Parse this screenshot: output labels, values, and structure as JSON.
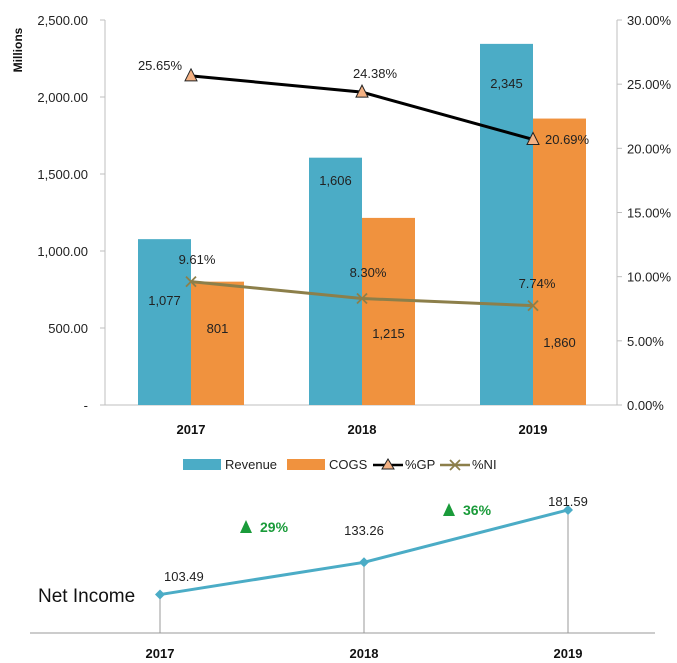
{
  "chart_data": [
    {
      "type": "bar",
      "categories": [
        "2017",
        "2018",
        "2019"
      ],
      "ylabel": "Millions",
      "ylim": [
        0,
        2500
      ],
      "y_ticks": [
        "-",
        "500.00",
        "1,000.00",
        "1,500.00",
        "2,000.00",
        "2,500.00"
      ],
      "y2lim": [
        0,
        30
      ],
      "y2_ticks": [
        "0.00%",
        "5.00%",
        "10.00%",
        "15.00%",
        "20.00%",
        "25.00%",
        "30.00%"
      ],
      "grid": false,
      "legend_position": "bottom",
      "series": [
        {
          "name": "Revenue",
          "kind": "bar",
          "color": "#4bacc6",
          "axis": "left",
          "values": [
            1077,
            1606,
            2345
          ],
          "labels": [
            "1,077",
            "1,606",
            "2,345"
          ]
        },
        {
          "name": "COGS",
          "kind": "bar",
          "color": "#f0923e",
          "axis": "left",
          "values": [
            801,
            1215,
            1860
          ],
          "labels": [
            "801",
            "1,215",
            "1,860"
          ]
        },
        {
          "name": "%GP",
          "kind": "line",
          "color": "#000000",
          "marker": "triangle",
          "marker_color": "#f4b183",
          "axis": "right",
          "values": [
            25.65,
            24.38,
            20.69
          ],
          "labels": [
            "25.65%",
            "24.38%",
            "20.69%"
          ]
        },
        {
          "name": "%NI",
          "kind": "line",
          "color": "#8c7f4a",
          "marker": "x",
          "axis": "right",
          "values": [
            9.61,
            8.3,
            7.74
          ],
          "labels": [
            "9.61%",
            "8.30%",
            "7.74%"
          ]
        }
      ]
    },
    {
      "type": "line",
      "categories": [
        "2017",
        "2018",
        "2019"
      ],
      "label": "Net Income",
      "series": [
        {
          "name": "Net Income",
          "color": "#4bacc6",
          "marker": "diamond",
          "values": [
            103.49,
            133.26,
            181.59
          ],
          "labels": [
            "103.49",
            "133.26",
            "181.59"
          ]
        }
      ],
      "growth": [
        {
          "label": "29%",
          "color": "#1a9b3a"
        },
        {
          "label": "36%",
          "color": "#1a9b3a"
        }
      ]
    }
  ]
}
